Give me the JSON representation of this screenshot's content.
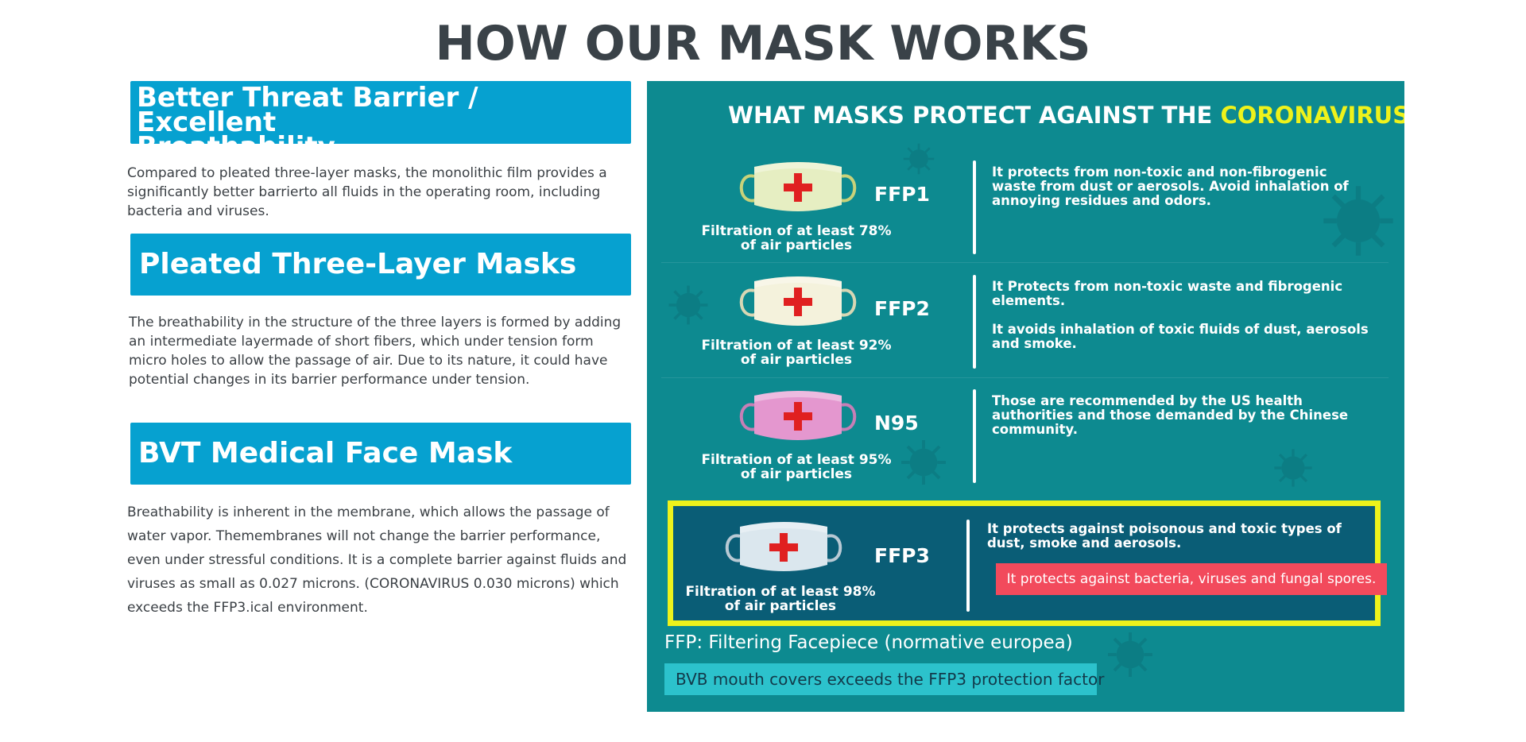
{
  "page_title": "HOW OUR MASK WORKS",
  "left": {
    "sections": [
      {
        "heading_line1": "Better Threat Barrier / Excellent",
        "heading_line2": "Breathability",
        "body": "Compared to pleated three-layer masks, the monolithic film provides a significantly better barrierto all fluids in the operating room, including bacteria and viruses."
      },
      {
        "heading": "Pleated Three-Layer Masks",
        "body": "The breathability in the structure of the three layers is formed by adding an intermediate layermade of short fibers, which under tension form micro holes to allow the passage of air. Due to its nature, it could have potential changes in its barrier performance under tension."
      },
      {
        "heading": "BVT Medical Face Mask",
        "body": "Breathability is inherent in the membrane, which allows the passage of water vapor. Themembranes will not change the barrier performance, even under stressful conditions. It is a complete barrier against fluids and viruses as small as 0.027 microns. (CORONAVIRUS 0.030 microns) which exceeds the FFP3.ical environment."
      }
    ]
  },
  "panel": {
    "title_prefix": "WHAT MASKS PROTECT AGAINST THE ",
    "title_highlight": "CORONAVIRUS?",
    "rows": [
      {
        "code": "FFP1",
        "filtration_line1": "Filtration of at least 78%",
        "filtration_line2": "of air particles",
        "desc1": "It protects from non-toxic and non-fibrogenic waste from dust or aerosols. Avoid inhalation of annoying residues and odors.",
        "mask_color": "#e6eec2"
      },
      {
        "code": "FFP2",
        "filtration_line1": "Filtration of at least 92%",
        "filtration_line2": "of air particles",
        "desc1": "It Protects from non-toxic waste and fibrogenic elements.",
        "desc2": "It avoids inhalation of toxic fluids of dust, aerosols and smoke.",
        "mask_color": "#f4f2dc"
      },
      {
        "code": "N95",
        "filtration_line1": "Filtration of at least 95%",
        "filtration_line2": "of air particles",
        "desc1": "Those are recommended by the US health authorities and those demanded by the Chinese community.",
        "mask_color": "#e497cf"
      },
      {
        "code": "FFP3",
        "filtration_line1": "Filtration of at least 98%",
        "filtration_line2": "of air particles",
        "desc1": "It protects against poisonous and toxic types of dust, smoke and aerosols.",
        "alert": "It protects against bacteria, viruses and fungal spores.",
        "mask_color": "#dbe7ee"
      }
    ],
    "footnote": "FFP: Filtering Facepiece (normative europea)",
    "banner": "BVB mouth covers exceeds the FFP3 protection factor"
  },
  "colors": {
    "heading_blue": "#06a1d0",
    "panel_teal": "#0d8a90",
    "highlight_yellow": "#eef21b",
    "alert_red": "#f24a5c",
    "cross_red": "#e02020",
    "banner_cyan": "#2cc2cc"
  },
  "icons": [
    "virus-icon",
    "mask-icon",
    "red-cross-icon"
  ]
}
